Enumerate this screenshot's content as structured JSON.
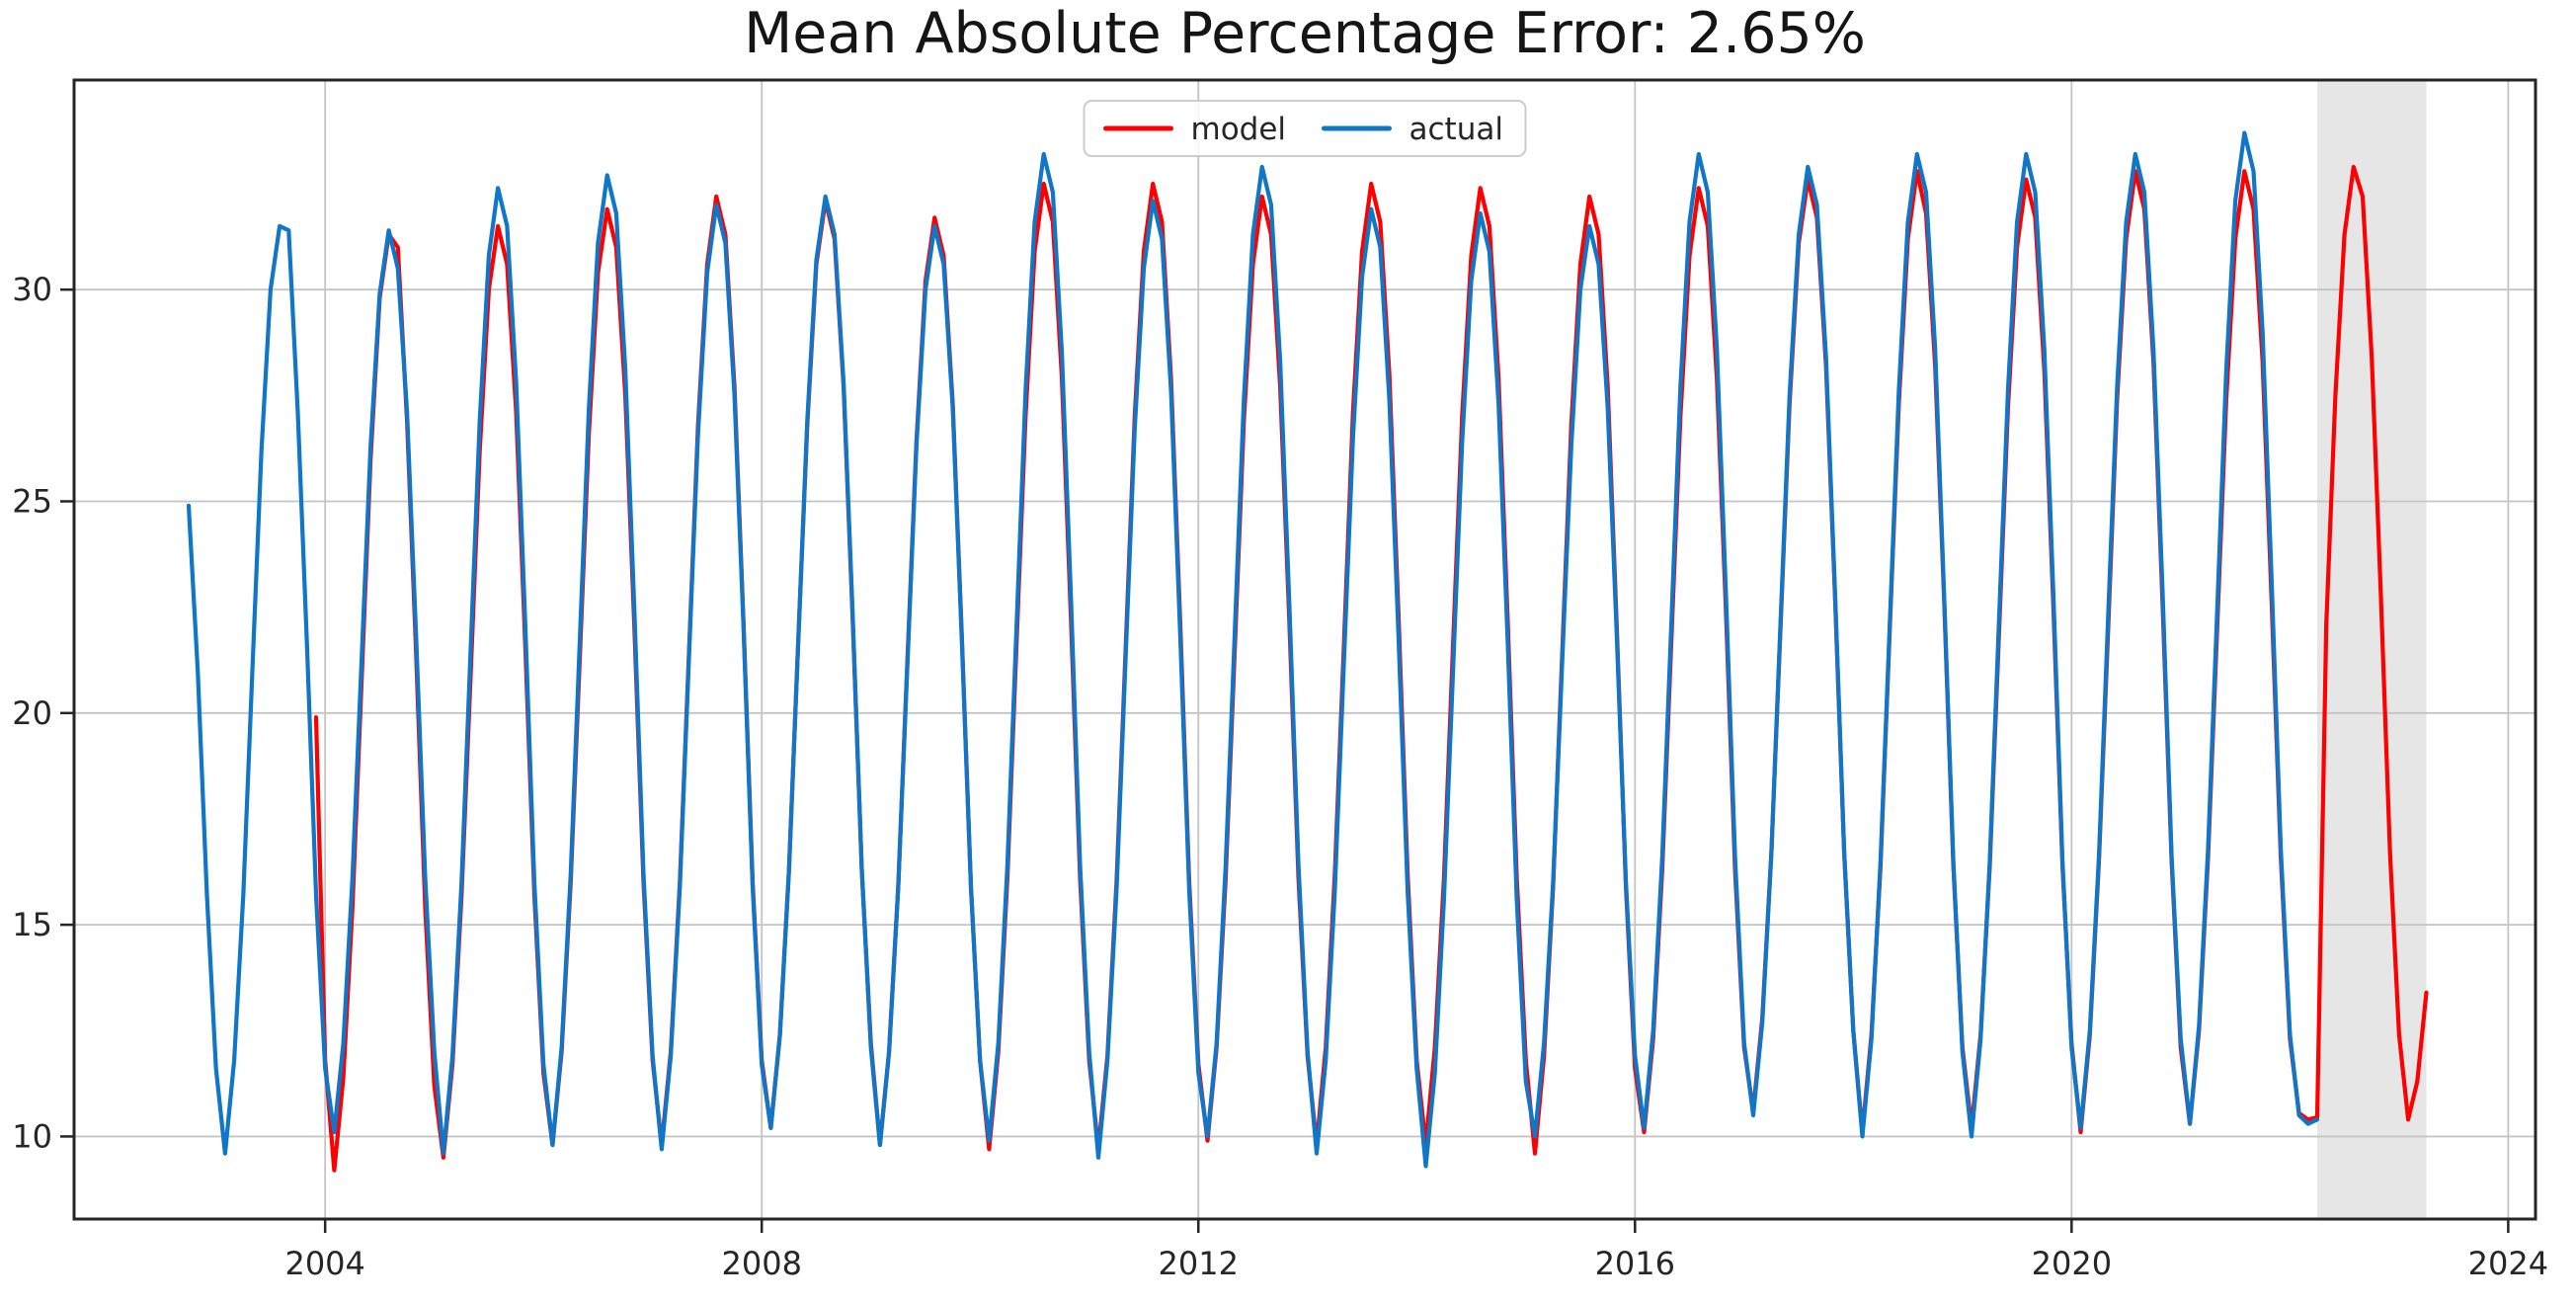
{
  "chart_data": {
    "type": "line",
    "title": "Mean Absolute Percentage Error: 2.65%",
    "mape_percent": 2.65,
    "xlabel": "",
    "ylabel": "",
    "xlim": [
      2001.7,
      2024.25
    ],
    "ylim": [
      8.05,
      34.95
    ],
    "xtick_values": [
      2004,
      2008,
      2012,
      2016,
      2020,
      2024
    ],
    "xtick_labels": [
      "2004",
      "2008",
      "2012",
      "2016",
      "2020",
      "2024"
    ],
    "ytick_values": [
      10,
      15,
      20,
      25,
      30
    ],
    "ytick_labels": [
      "10",
      "15",
      "20",
      "25",
      "30"
    ],
    "grid": true,
    "grid_color": "#c4c4c4",
    "axis_color": "#262626",
    "background_color": "#ffffff",
    "legend_position": "upper center",
    "forecast_region": {
      "start": 2022.25,
      "end": 2023.25,
      "color": "#e6e6e6"
    },
    "frequency": "monthly",
    "series": [
      {
        "name": "model",
        "color": "#ff0000",
        "start_year": 2003,
        "start_month": 11,
        "values": [
          19.9,
          11.8,
          9.2,
          11.4,
          15.4,
          20.7,
          26.0,
          29.8,
          31.3,
          31.0,
          26.9,
          21.4,
          15.4,
          11.2,
          9.5,
          11.7,
          15.7,
          20.9,
          26.2,
          30.0,
          31.5,
          30.6,
          27.1,
          21.6,
          15.7,
          11.5,
          9.8,
          12.0,
          16.0,
          21.3,
          26.6,
          30.4,
          31.9,
          31.0,
          27.5,
          22.0,
          16.0,
          11.8,
          9.8,
          12.0,
          16.0,
          21.4,
          26.8,
          30.6,
          32.2,
          31.3,
          27.7,
          22.1,
          16.0,
          11.8,
          10.2,
          12.4,
          16.3,
          21.6,
          26.8,
          30.6,
          32.1,
          31.2,
          27.7,
          22.2,
          16.3,
          12.2,
          9.8,
          12.0,
          15.9,
          21.2,
          26.4,
          30.2,
          31.7,
          30.8,
          27.3,
          21.8,
          15.9,
          11.8,
          9.7,
          12.0,
          16.1,
          21.6,
          27.0,
          30.9,
          32.5,
          31.6,
          27.9,
          22.2,
          16.1,
          11.8,
          9.7,
          11.9,
          16.0,
          21.5,
          27.0,
          30.9,
          32.5,
          31.6,
          27.9,
          22.2,
          16.0,
          11.7,
          9.9,
          12.1,
          16.1,
          21.5,
          26.9,
          30.6,
          32.2,
          31.3,
          27.7,
          22.2,
          16.1,
          11.9,
          9.8,
          12.1,
          16.2,
          21.6,
          27.1,
          30.9,
          32.5,
          31.6,
          28.0,
          22.3,
          16.2,
          11.8,
          9.8,
          12.1,
          16.1,
          21.6,
          27.0,
          30.8,
          32.4,
          31.5,
          27.9,
          22.2,
          16.1,
          11.8,
          9.6,
          11.9,
          15.9,
          21.4,
          26.8,
          30.6,
          32.2,
          31.3,
          27.7,
          22.0,
          15.9,
          11.6,
          10.1,
          12.3,
          16.3,
          21.7,
          27.0,
          30.8,
          32.4,
          31.5,
          27.9,
          22.4,
          16.3,
          12.1,
          10.6,
          12.8,
          16.7,
          22.0,
          27.3,
          31.1,
          32.6,
          31.7,
          28.2,
          22.7,
          16.7,
          12.5,
          10.1,
          12.4,
          16.4,
          21.9,
          27.3,
          31.2,
          32.8,
          31.8,
          28.2,
          22.6,
          16.4,
          12.1,
          10.2,
          12.4,
          16.4,
          21.8,
          27.2,
          31.0,
          32.6,
          31.7,
          28.1,
          22.5,
          16.4,
          12.2,
          10.1,
          12.4,
          16.5,
          21.9,
          27.4,
          31.2,
          32.8,
          31.9,
          28.3,
          22.6,
          16.5,
          12.1,
          10.3,
          12.5,
          16.6,
          22.0,
          27.4,
          31.2,
          32.8,
          31.9,
          28.3,
          22.6,
          16.6,
          12.3,
          10.55,
          10.4,
          10.45,
          22.1,
          27.5,
          31.3,
          32.9,
          32.2,
          28.4,
          22.8,
          16.7,
          12.4,
          10.4,
          11.3,
          13.4
        ]
      },
      {
        "name": "actual",
        "color": "#0f76c8",
        "start_year": 2002,
        "start_month": 9,
        "values": [
          24.9,
          21.0,
          15.7,
          11.6,
          9.6,
          11.8,
          15.7,
          21.0,
          26.2,
          30.0,
          31.5,
          31.4,
          27.1,
          21.6,
          15.7,
          11.6,
          10.1,
          12.2,
          16.1,
          21.2,
          26.3,
          29.9,
          31.4,
          30.5,
          27.1,
          21.8,
          16.1,
          12.0,
          9.6,
          11.9,
          16.0,
          21.5,
          26.9,
          30.8,
          32.4,
          31.5,
          27.8,
          22.1,
          16.0,
          11.7,
          9.8,
          12.1,
          16.2,
          21.7,
          27.2,
          31.1,
          32.7,
          31.8,
          28.1,
          22.4,
          16.2,
          11.9,
          9.7,
          11.9,
          15.9,
          21.3,
          26.6,
          30.4,
          32.0,
          31.1,
          27.5,
          22.0,
          15.9,
          11.7,
          10.2,
          12.4,
          16.3,
          21.6,
          26.9,
          30.7,
          32.2,
          31.3,
          27.8,
          22.3,
          16.3,
          12.1,
          9.8,
          12.0,
          15.9,
          21.1,
          26.3,
          30.0,
          31.5,
          30.6,
          27.2,
          21.7,
          15.9,
          11.8,
          9.9,
          12.2,
          16.4,
          22.0,
          27.6,
          31.6,
          33.2,
          32.3,
          28.5,
          22.7,
          16.4,
          12.0,
          9.5,
          11.8,
          15.8,
          21.3,
          26.7,
          30.5,
          32.1,
          31.2,
          27.6,
          21.9,
          15.8,
          11.5,
          10.0,
          12.2,
          16.4,
          21.9,
          27.4,
          31.3,
          32.9,
          32.0,
          28.3,
          22.6,
          16.4,
          12.0,
          9.6,
          11.8,
          15.8,
          21.2,
          26.5,
          30.3,
          31.9,
          31.0,
          27.4,
          21.8,
          15.8,
          11.6,
          9.3,
          11.5,
          15.6,
          21.0,
          26.4,
          30.2,
          31.8,
          30.9,
          27.3,
          21.7,
          15.6,
          11.3,
          10.0,
          12.2,
          16.0,
          21.2,
          26.3,
          30.0,
          31.5,
          30.6,
          27.2,
          21.8,
          16.0,
          11.9,
          10.2,
          12.5,
          16.6,
          22.1,
          27.7,
          31.6,
          33.2,
          32.3,
          28.6,
          22.8,
          16.6,
          12.2,
          10.5,
          12.7,
          16.7,
          22.1,
          27.5,
          31.3,
          32.9,
          32.0,
          28.4,
          22.8,
          16.7,
          12.5,
          10.0,
          12.3,
          16.5,
          22.0,
          27.6,
          31.6,
          33.2,
          32.3,
          28.6,
          22.7,
          16.5,
          12.0,
          10.0,
          12.3,
          16.5,
          22.1,
          27.6,
          31.6,
          33.2,
          32.3,
          28.6,
          22.8,
          16.5,
          12.1,
          10.2,
          12.5,
          16.6,
          22.2,
          27.7,
          31.6,
          33.2,
          32.3,
          28.6,
          22.9,
          16.6,
          12.3,
          10.3,
          12.6,
          16.8,
          22.4,
          28.1,
          32.1,
          33.7,
          32.8,
          29.0,
          23.1,
          16.8,
          12.4,
          10.5,
          10.3,
          10.4
        ]
      }
    ]
  },
  "legend": {
    "items": [
      {
        "label": "model",
        "color": "#ff0000"
      },
      {
        "label": "actual",
        "color": "#0f76c8"
      }
    ]
  }
}
